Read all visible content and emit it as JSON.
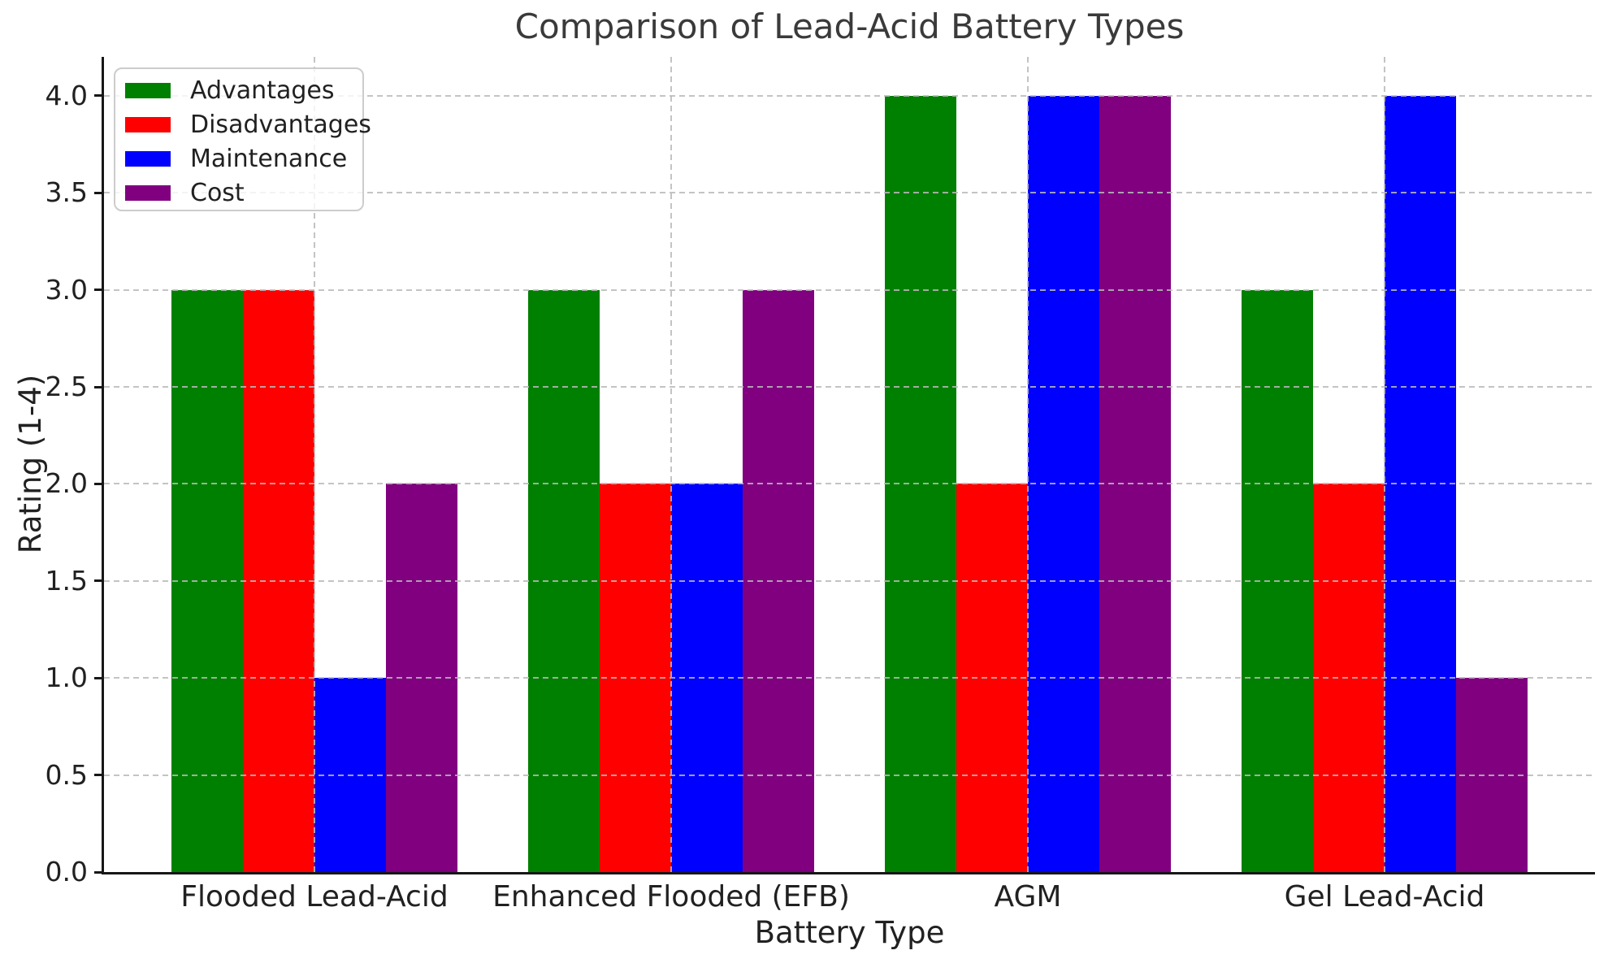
{
  "chart_data": {
    "type": "bar",
    "title": "Comparison of Lead-Acid Battery Types",
    "xlabel": "Battery Type",
    "ylabel": "Rating (1-4)",
    "categories": [
      "Flooded Lead-Acid",
      "Enhanced Flooded (EFB)",
      "AGM",
      "Gel Lead-Acid"
    ],
    "series": [
      {
        "name": "Advantages",
        "color": "#008000",
        "values": [
          3,
          3,
          4,
          3
        ]
      },
      {
        "name": "Disadvantages",
        "color": "#ff0000",
        "values": [
          3,
          2,
          2,
          2
        ]
      },
      {
        "name": "Maintenance",
        "color": "#0000ff",
        "values": [
          1,
          2,
          4,
          4
        ]
      },
      {
        "name": "Cost",
        "color": "#800080",
        "values": [
          2,
          3,
          4,
          1
        ]
      }
    ],
    "ylim": [
      0,
      4.2
    ],
    "xlim": [
      -0.59,
      3.59
    ],
    "yticks": [
      0.0,
      0.5,
      1.0,
      1.5,
      2.0,
      2.5,
      3.0,
      3.5,
      4.0
    ],
    "ytick_labels": [
      "0.0",
      "0.5",
      "1.0",
      "1.5",
      "2.0",
      "2.5",
      "3.0",
      "3.5",
      "4.0"
    ],
    "bar_width": 0.2,
    "group_offsets": [
      -0.3,
      -0.1,
      0.1,
      0.3
    ],
    "grid": true,
    "grid_style": "dashed",
    "legend_position": "upper left"
  }
}
